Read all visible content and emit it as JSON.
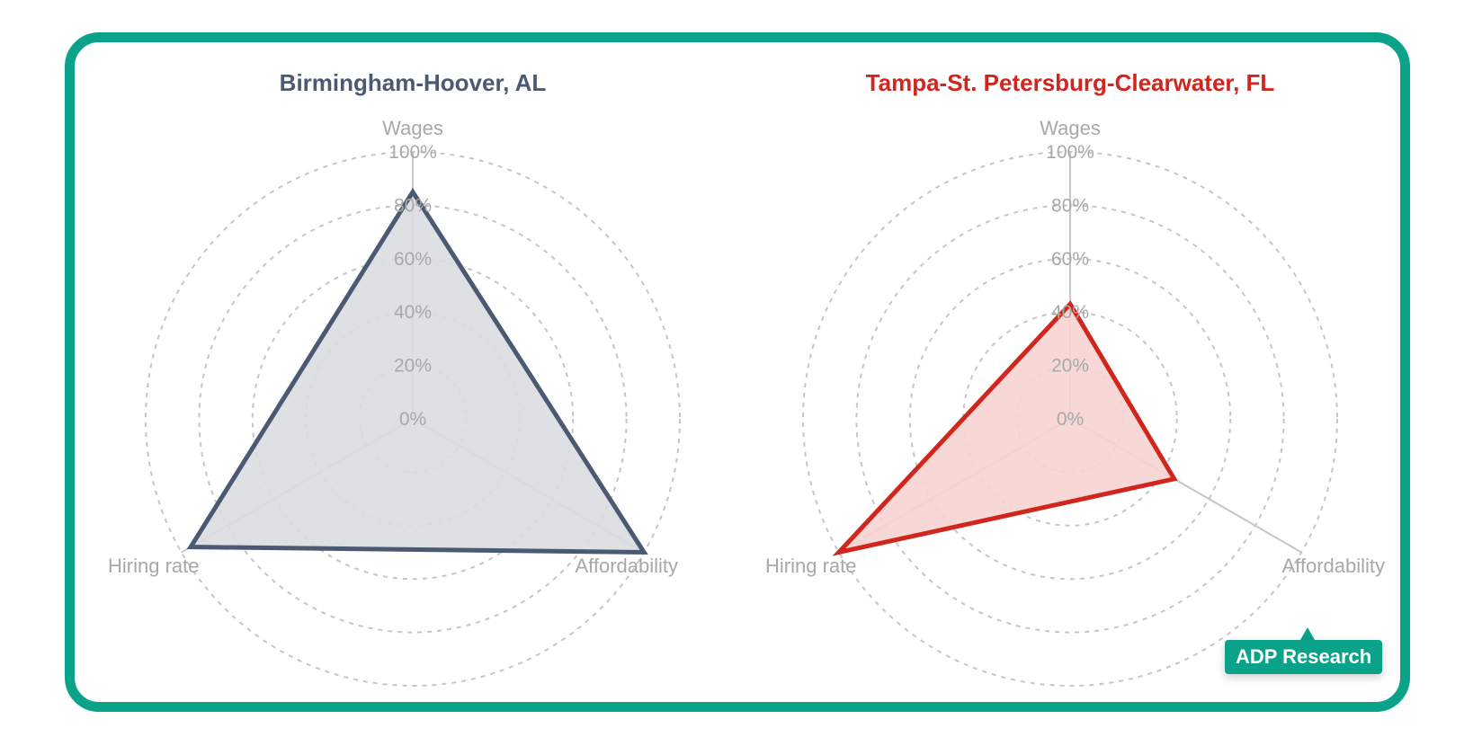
{
  "chart_data": [
    {
      "type": "radar",
      "title": "Birmingham-Hoover, AL",
      "axes": [
        "Wages",
        "Affordability",
        "Hiring rate"
      ],
      "ticks": [
        "0%",
        "20%",
        "40%",
        "60%",
        "80%",
        "100%"
      ],
      "range": [
        0,
        100
      ],
      "values": [
        85,
        100,
        96
      ],
      "colors": {
        "title": "#4a5a72",
        "line": "#4a5a72",
        "fill": "#dadde1"
      },
      "grid": "dashed-circles",
      "legend": "none"
    },
    {
      "type": "radar",
      "title": "Tampa-St. Petersburg-Clearwater, FL",
      "axes": [
        "Wages",
        "Affordability",
        "Hiring rate"
      ],
      "ticks": [
        "0%",
        "20%",
        "40%",
        "60%",
        "80%",
        "100%"
      ],
      "range": [
        0,
        100
      ],
      "values": [
        43,
        45,
        100
      ],
      "colors": {
        "title": "#d0261d",
        "line": "#d0261d",
        "fill": "#f6d4d3"
      },
      "grid": "dashed-circles",
      "legend": "none"
    }
  ],
  "badge": {
    "label": "ADP Research"
  },
  "colors": {
    "frame": "#0aa38a",
    "grid": "#c6c6c6",
    "text_muted": "#a8a8a8"
  }
}
